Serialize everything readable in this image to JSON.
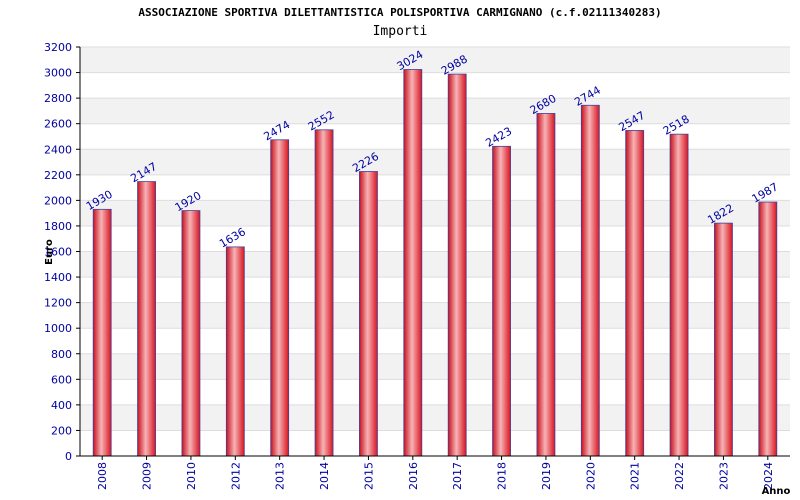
{
  "chart_data": {
    "type": "bar",
    "title": "ASSOCIAZIONE SPORTIVA DILETTANTISTICA POLISPORTIVA CARMIGNANO (c.f.02111340283)",
    "subtitle": "Importi",
    "xlabel": "Anno",
    "ylabel": "Euro",
    "categories": [
      "2008",
      "2009",
      "2010",
      "2012",
      "2013",
      "2014",
      "2015",
      "2016",
      "2017",
      "2018",
      "2019",
      "2020",
      "2021",
      "2022",
      "2023",
      "2024"
    ],
    "values": [
      1930,
      2147,
      1920,
      1636,
      2474,
      2552,
      2226,
      3024,
      2988,
      2423,
      2680,
      2744,
      2547,
      2518,
      1822,
      1987
    ],
    "ylim": [
      0,
      3200
    ],
    "yticks": [
      0,
      200,
      400,
      600,
      800,
      1000,
      1200,
      1400,
      1600,
      1800,
      2000,
      2200,
      2400,
      2600,
      2800,
      3000,
      3200
    ],
    "grid": true,
    "bar_color": "#e8202a",
    "bar_edge_color": "#4040a0",
    "tick_color": "#0000a0",
    "band_color": "#f2f2f2"
  }
}
